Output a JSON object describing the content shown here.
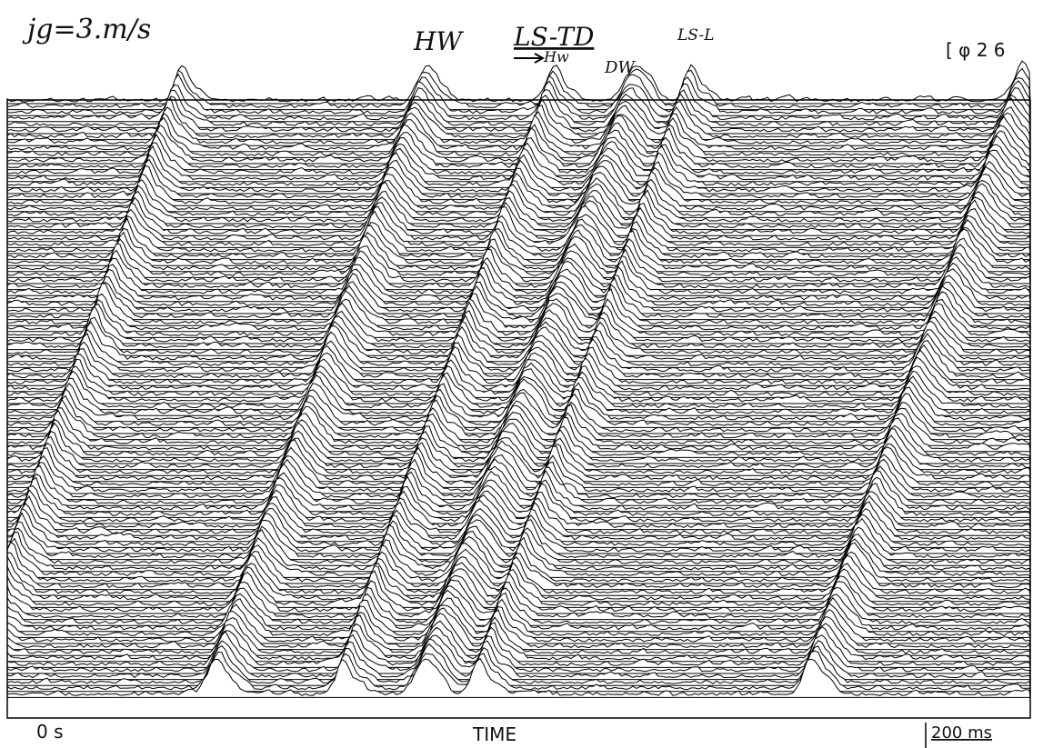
{
  "annotations": {
    "velocity": "jg=3.m/s",
    "hw": "HW",
    "ls_td": "LS-TD",
    "hw_small": "Hw",
    "dw": "DW",
    "ls_l": "LS-L",
    "run_id": "[ φ 2 6"
  },
  "axis": {
    "start": "0 s",
    "label": "TIME",
    "scale": "200 ms"
  }
}
